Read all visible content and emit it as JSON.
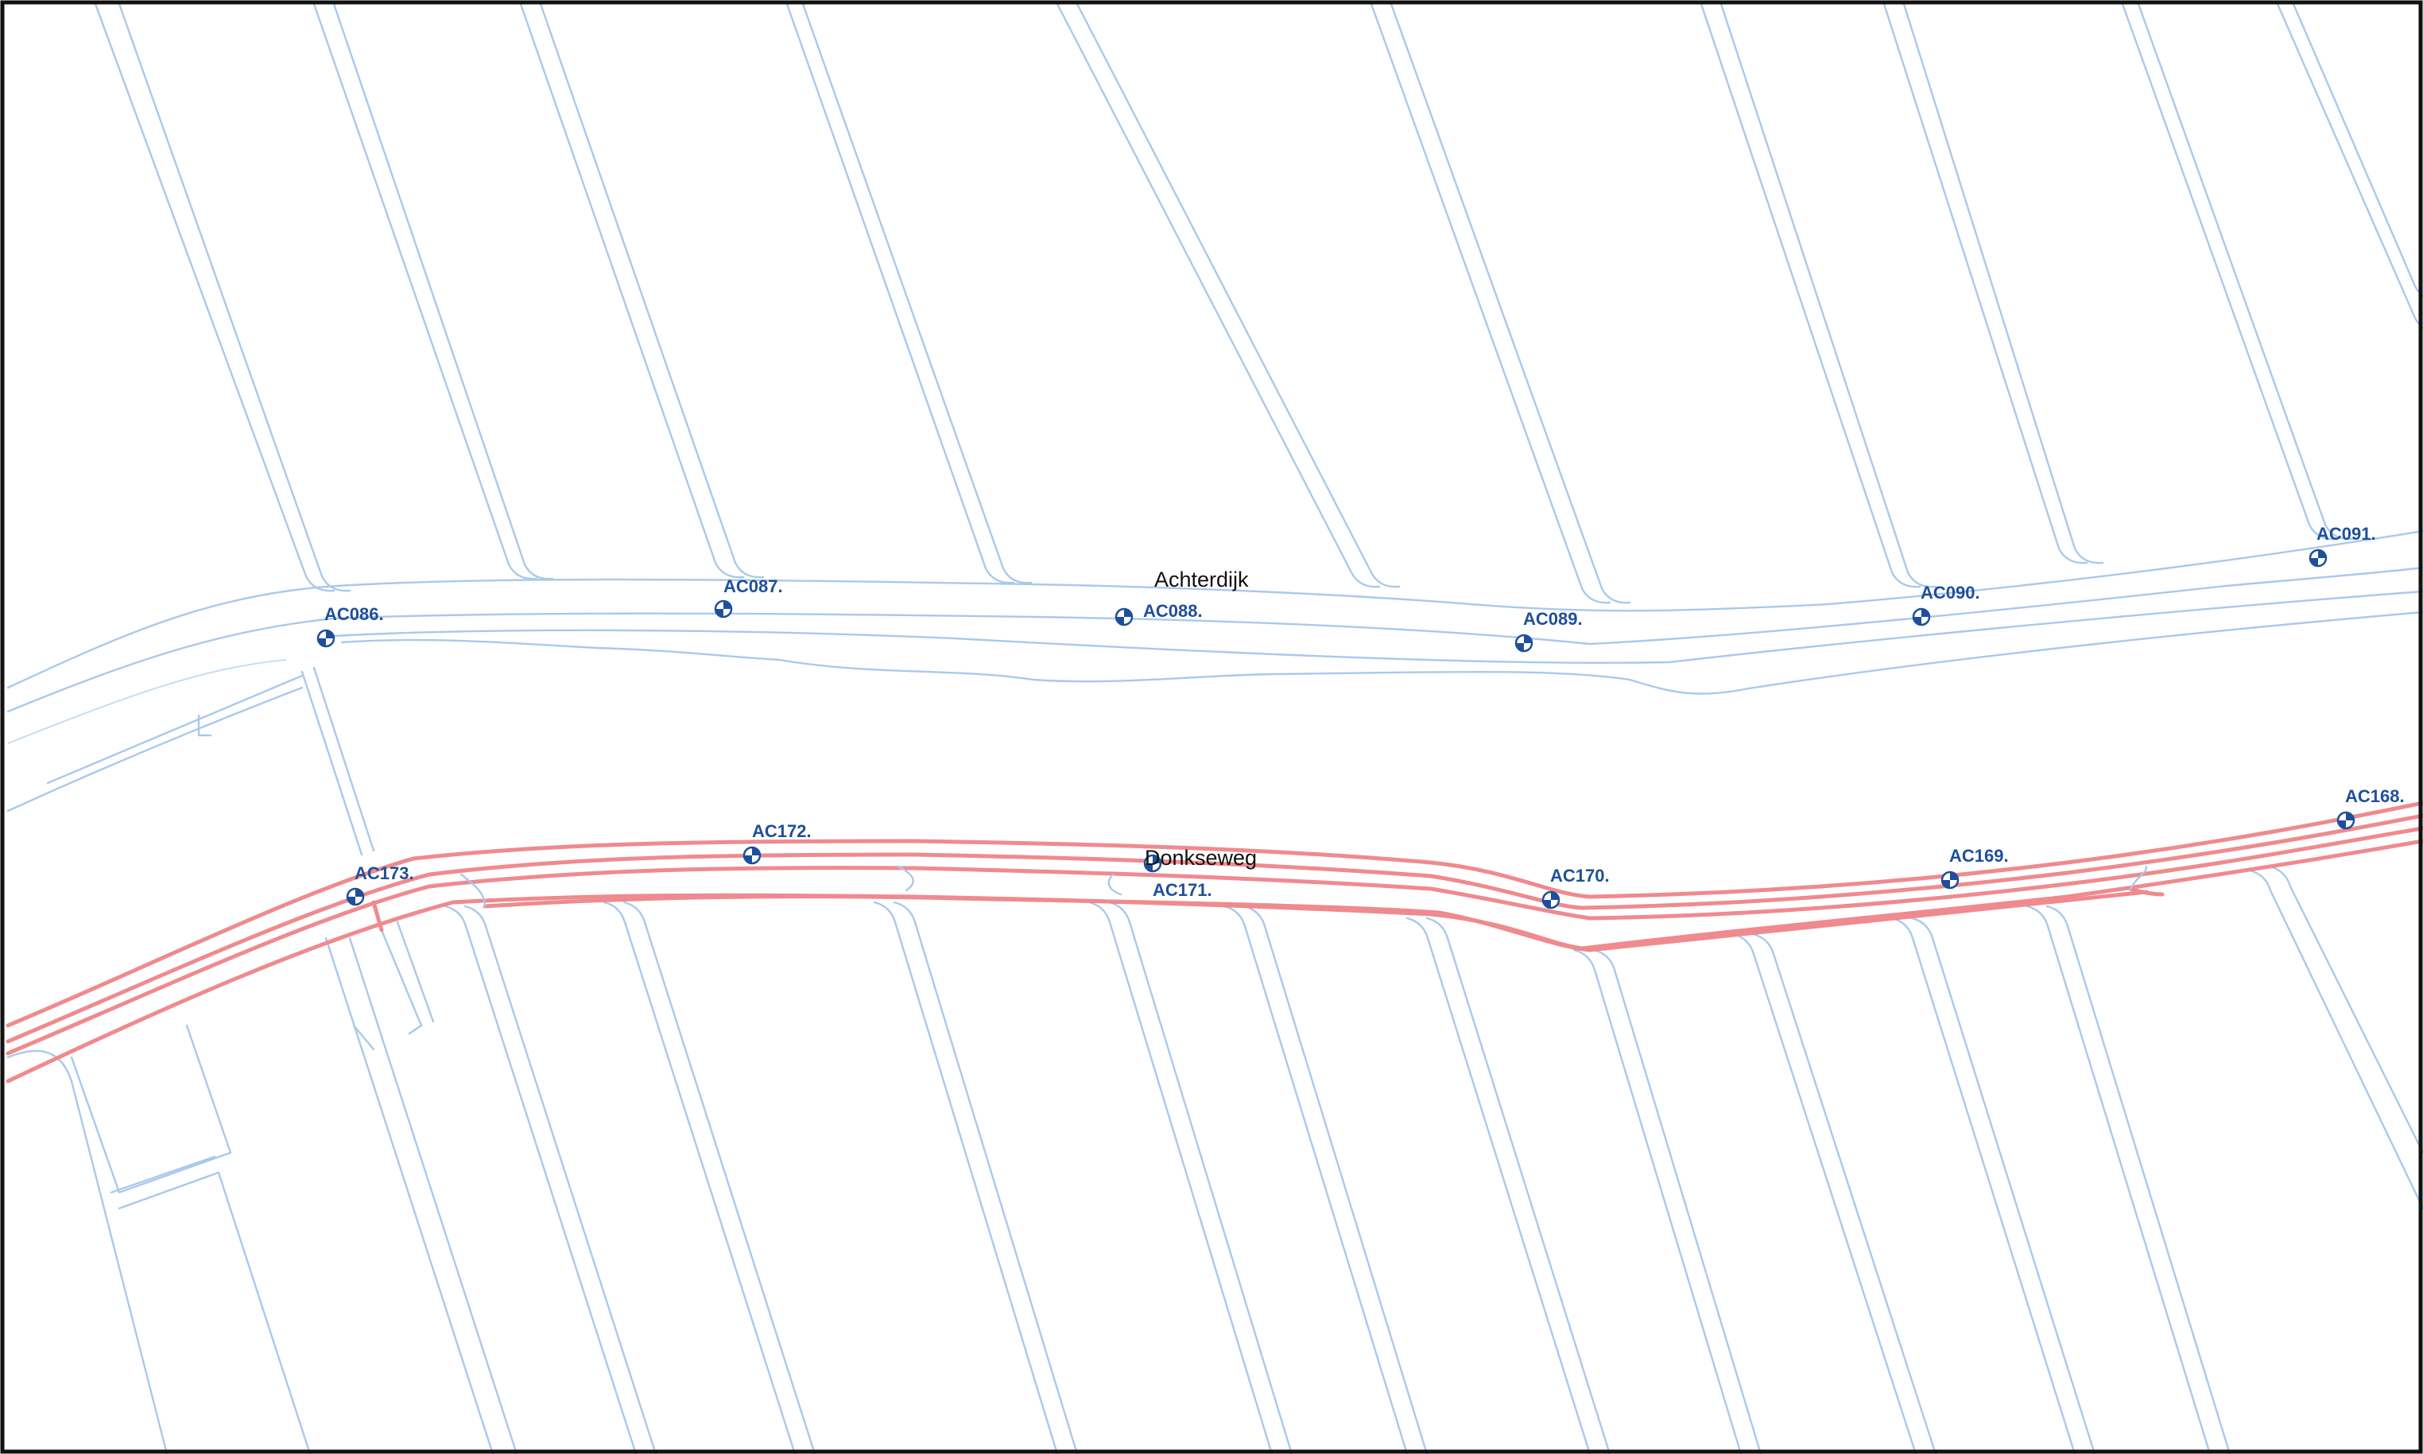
{
  "map": {
    "colors": {
      "water": "#a9c9ec",
      "road": "#ef8a8e",
      "marker": "#1f4f9a",
      "label": "#1f4f9a",
      "frame": "#111111"
    },
    "streets": [
      {
        "id": "achterdijk",
        "label": "Achterdijk"
      },
      {
        "id": "donkseweg",
        "label": "Donkseweg"
      }
    ],
    "markers": [
      {
        "id": "ac086",
        "label": "AC086."
      },
      {
        "id": "ac087",
        "label": "AC087."
      },
      {
        "id": "ac088",
        "label": "AC088."
      },
      {
        "id": "ac089",
        "label": "AC089."
      },
      {
        "id": "ac090",
        "label": "AC090."
      },
      {
        "id": "ac091",
        "label": "AC091."
      },
      {
        "id": "ac168",
        "label": "AC168."
      },
      {
        "id": "ac169",
        "label": "AC169."
      },
      {
        "id": "ac170",
        "label": "AC170."
      },
      {
        "id": "ac171",
        "label": "AC171."
      },
      {
        "id": "ac172",
        "label": "AC172."
      },
      {
        "id": "ac173",
        "label": "AC173."
      }
    ]
  }
}
